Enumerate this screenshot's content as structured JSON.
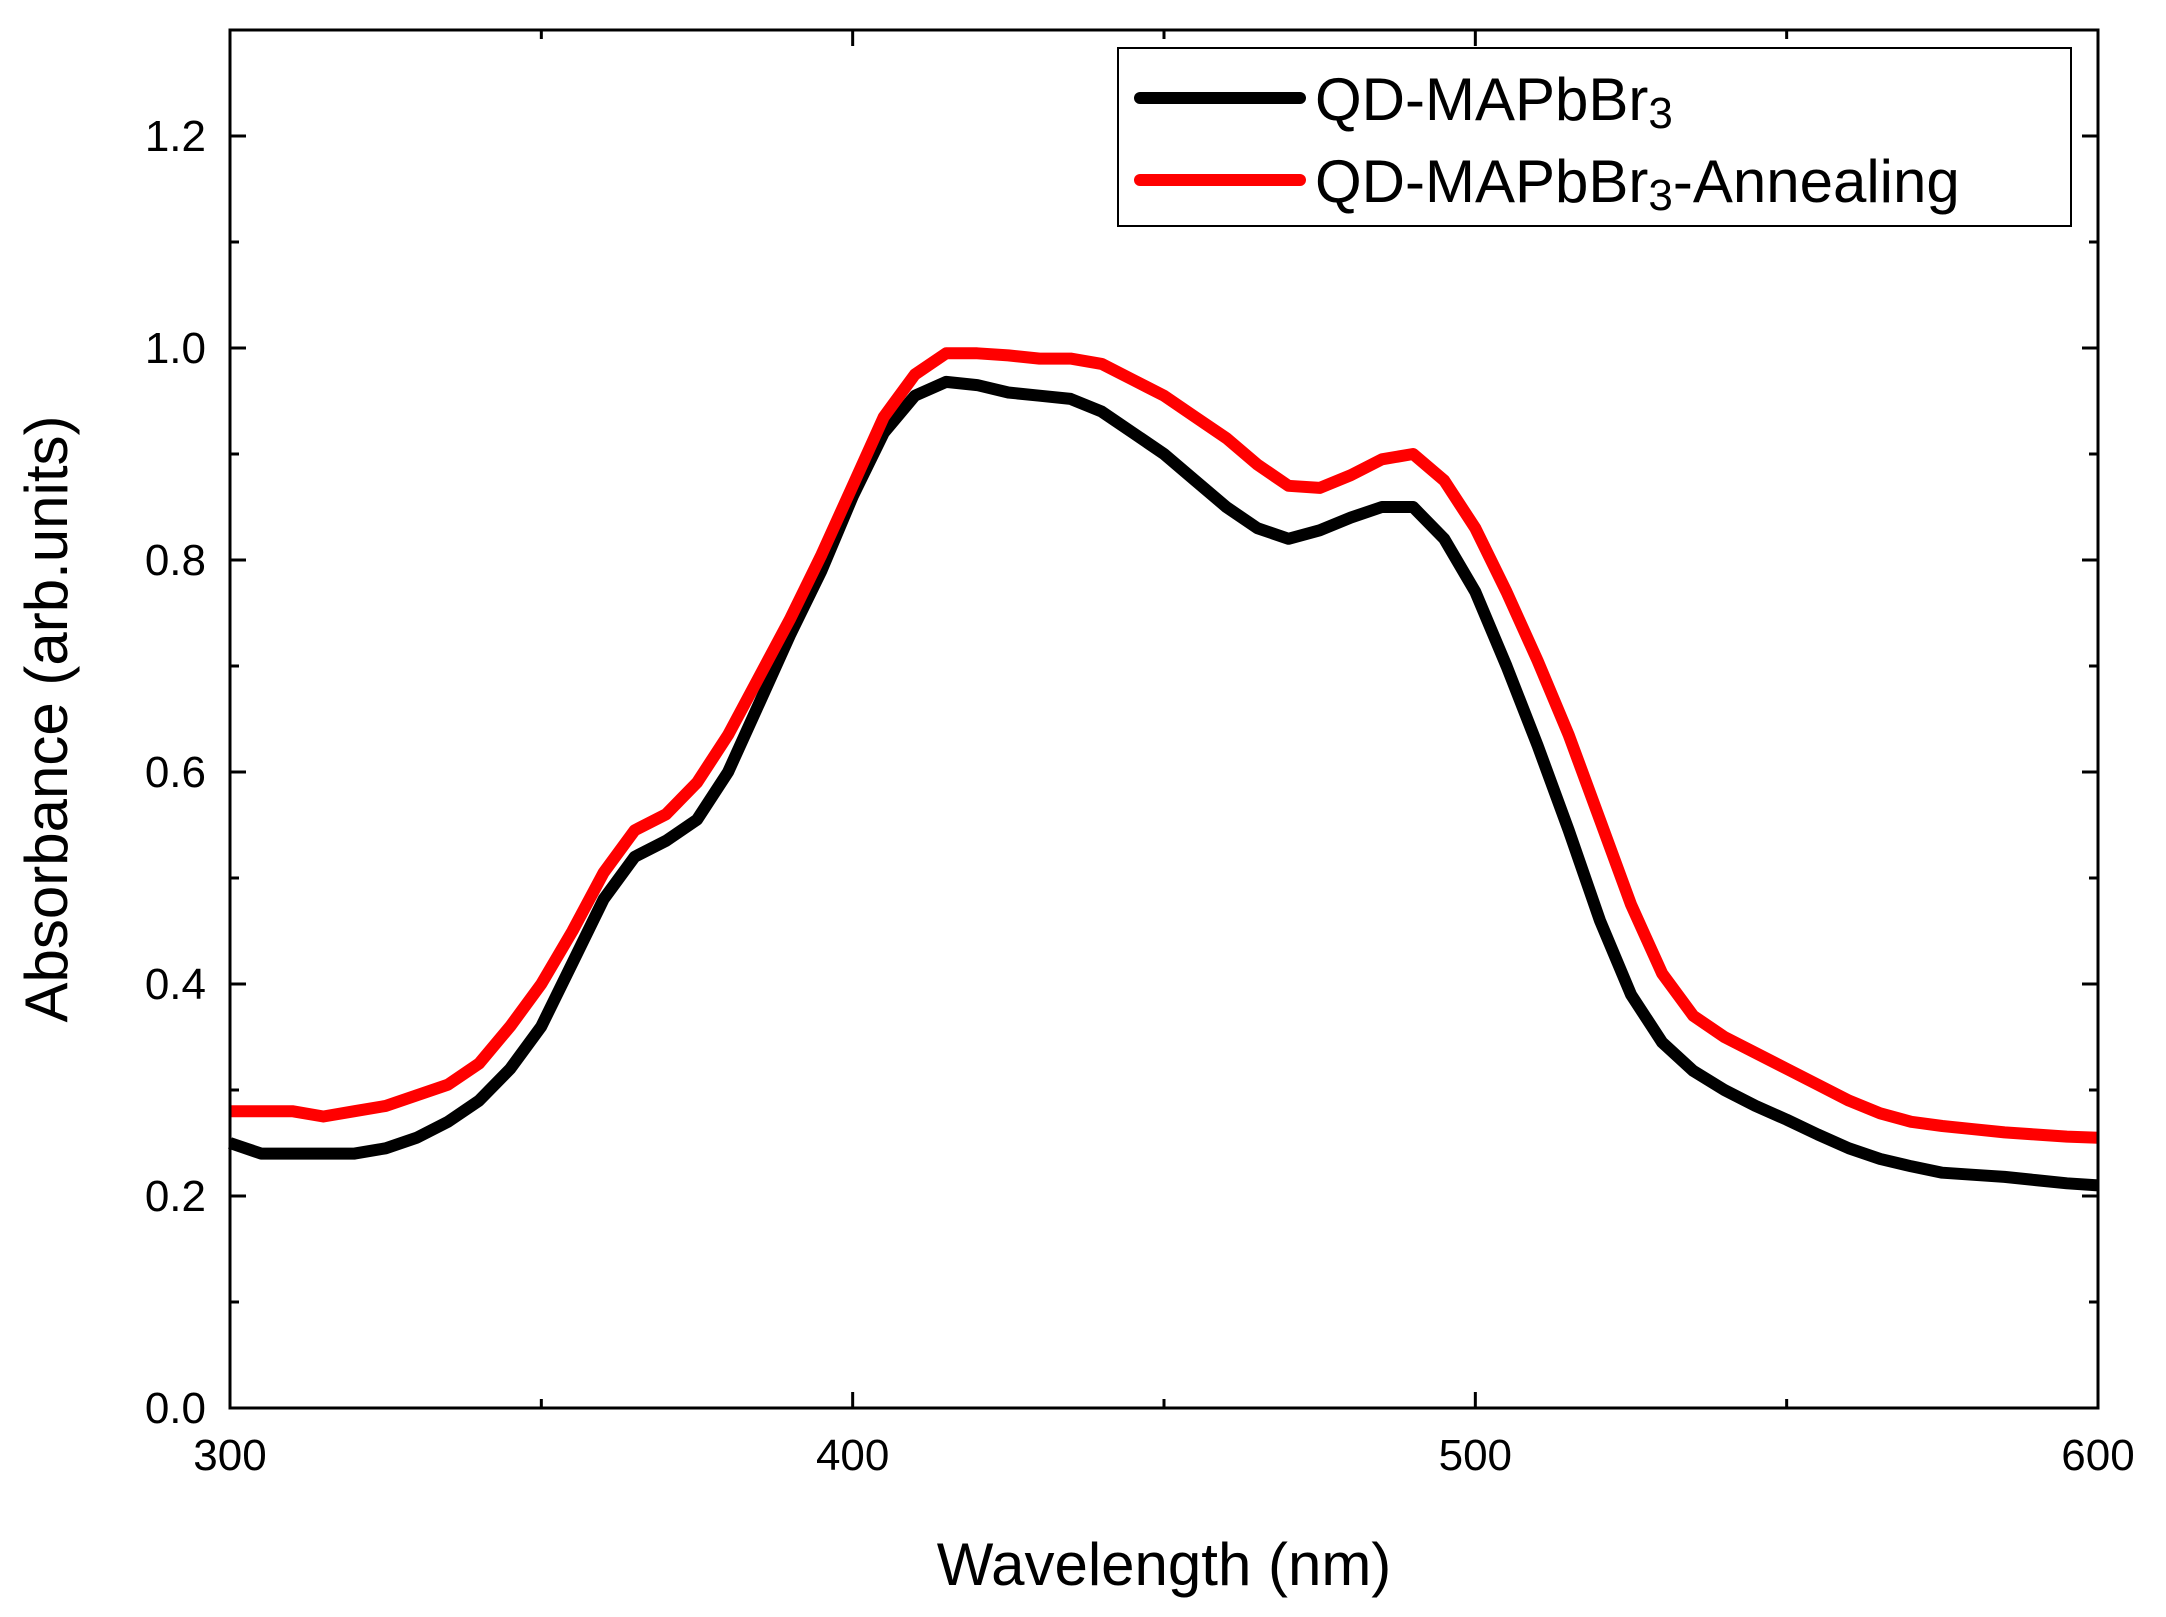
{
  "chart_data": {
    "type": "line",
    "title": "",
    "xlabel": "Wavelength (nm)",
    "ylabel": "Absorbance (arb.units)",
    "xlim": [
      300,
      600
    ],
    "ylim": [
      0.0,
      1.3
    ],
    "x_ticks": [
      300,
      400,
      500,
      600
    ],
    "x_minor_ticks": [
      350,
      450,
      550
    ],
    "x_tick_labels": [
      "300",
      "400",
      "500",
      "600"
    ],
    "y_ticks": [
      0.0,
      0.2,
      0.4,
      0.6,
      0.8,
      1.0,
      1.2
    ],
    "y_minor_ticks": [
      0.1,
      0.3,
      0.5,
      0.7,
      0.9,
      1.1
    ],
    "y_tick_labels": [
      "0.0",
      "0.2",
      "0.4",
      "0.6",
      "0.8",
      "1.0",
      "1.2"
    ],
    "grid": false,
    "legend_position": "top-right",
    "series": [
      {
        "name": "QD-MAPbBr3",
        "legend_base": "QD-MAPbBr",
        "legend_subscript": "3",
        "legend_suffix": "",
        "color": "#000000",
        "x": [
          300,
          305,
          310,
          315,
          320,
          325,
          330,
          335,
          340,
          345,
          350,
          355,
          360,
          365,
          370,
          375,
          380,
          385,
          390,
          395,
          400,
          405,
          410,
          415,
          420,
          425,
          430,
          435,
          440,
          445,
          450,
          455,
          460,
          465,
          470,
          475,
          480,
          485,
          490,
          495,
          500,
          505,
          510,
          515,
          520,
          525,
          530,
          535,
          540,
          545,
          550,
          555,
          560,
          565,
          570,
          575,
          580,
          585,
          590,
          595,
          600
        ],
        "y": [
          0.25,
          0.24,
          0.24,
          0.24,
          0.24,
          0.245,
          0.255,
          0.27,
          0.29,
          0.32,
          0.36,
          0.42,
          0.48,
          0.52,
          0.535,
          0.555,
          0.6,
          0.665,
          0.73,
          0.79,
          0.86,
          0.92,
          0.955,
          0.968,
          0.965,
          0.958,
          0.955,
          0.952,
          0.94,
          0.92,
          0.9,
          0.875,
          0.85,
          0.83,
          0.82,
          0.828,
          0.84,
          0.85,
          0.85,
          0.82,
          0.77,
          0.7,
          0.625,
          0.545,
          0.46,
          0.39,
          0.345,
          0.318,
          0.3,
          0.285,
          0.272,
          0.258,
          0.245,
          0.235,
          0.228,
          0.222,
          0.22,
          0.218,
          0.215,
          0.212,
          0.21
        ]
      },
      {
        "name": "QD-MAPbBr3-Annealing",
        "legend_base": "QD-MAPbBr",
        "legend_subscript": "3",
        "legend_suffix": "-Annealing",
        "color": "#ff0000",
        "x": [
          300,
          305,
          310,
          315,
          320,
          325,
          330,
          335,
          340,
          345,
          350,
          355,
          360,
          365,
          370,
          375,
          380,
          385,
          390,
          395,
          400,
          405,
          410,
          415,
          420,
          425,
          430,
          435,
          440,
          445,
          450,
          455,
          460,
          465,
          470,
          475,
          480,
          485,
          490,
          495,
          500,
          505,
          510,
          515,
          520,
          525,
          530,
          535,
          540,
          545,
          550,
          555,
          560,
          565,
          570,
          575,
          580,
          585,
          590,
          595,
          600
        ],
        "y": [
          0.28,
          0.28,
          0.28,
          0.275,
          0.28,
          0.285,
          0.295,
          0.305,
          0.325,
          0.36,
          0.4,
          0.45,
          0.505,
          0.545,
          0.56,
          0.59,
          0.635,
          0.69,
          0.745,
          0.805,
          0.87,
          0.935,
          0.975,
          0.995,
          0.995,
          0.993,
          0.99,
          0.99,
          0.985,
          0.97,
          0.955,
          0.935,
          0.915,
          0.89,
          0.87,
          0.868,
          0.88,
          0.895,
          0.9,
          0.875,
          0.83,
          0.77,
          0.705,
          0.635,
          0.555,
          0.475,
          0.41,
          0.37,
          0.35,
          0.335,
          0.32,
          0.305,
          0.29,
          0.278,
          0.27,
          0.266,
          0.263,
          0.26,
          0.258,
          0.256,
          0.255
        ]
      }
    ]
  }
}
